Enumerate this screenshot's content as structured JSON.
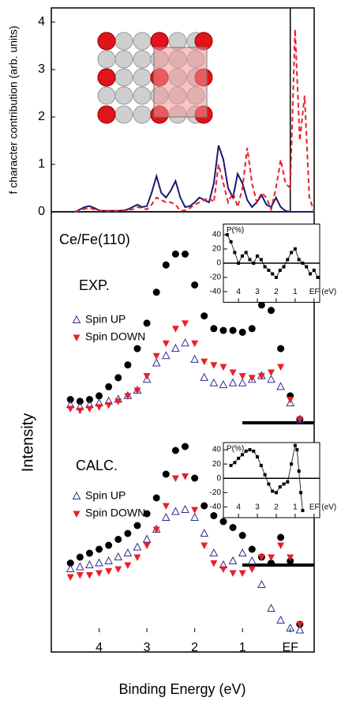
{
  "chart_data": [
    {
      "type": "line",
      "ylabel": "f character contribution (arb. units)",
      "xlim": [
        5,
        -0.5
      ],
      "ylim": [
        0,
        4.3
      ],
      "yticks": [
        0,
        1,
        2,
        3,
        4
      ],
      "vline": 0,
      "x": [
        4.5,
        4.4,
        4.3,
        4.2,
        4.1,
        4.0,
        3.9,
        3.8,
        3.7,
        3.6,
        3.5,
        3.4,
        3.3,
        3.2,
        3.1,
        3.0,
        2.9,
        2.8,
        2.7,
        2.6,
        2.5,
        2.4,
        2.3,
        2.2,
        2.1,
        2.0,
        1.9,
        1.8,
        1.7,
        1.6,
        1.5,
        1.4,
        1.3,
        1.2,
        1.1,
        1.0,
        0.9,
        0.8,
        0.7,
        0.6,
        0.5,
        0.4,
        0.3,
        0.2,
        0.1,
        0.0,
        -0.1,
        -0.2,
        -0.3,
        -0.4,
        -0.5
      ],
      "series": [
        {
          "color": "#1a1a6e",
          "dash": false,
          "values": [
            0,
            0.05,
            0.1,
            0.12,
            0.08,
            0.03,
            0.02,
            0.02,
            0.02,
            0.02,
            0.03,
            0.05,
            0.1,
            0.15,
            0.1,
            0.12,
            0.4,
            0.75,
            0.4,
            0.3,
            0.45,
            0.65,
            0.3,
            0.1,
            0.12,
            0.2,
            0.3,
            0.25,
            0.2,
            0.6,
            1.4,
            1.1,
            0.5,
            0.3,
            0.8,
            0.6,
            0.25,
            0.1,
            0.2,
            0.35,
            0.15,
            0.1,
            0.3,
            0.1,
            0.02,
            0,
            0,
            0,
            0,
            0,
            0
          ]
        },
        {
          "color": "#e8202a",
          "dash": true,
          "values": [
            0,
            0.03,
            0.06,
            0.08,
            0.05,
            0.02,
            0.02,
            0.02,
            0.02,
            0.02,
            0.03,
            0.04,
            0.05,
            0.1,
            0.08,
            0.05,
            0.15,
            0.3,
            0.25,
            0.2,
            0.2,
            0.15,
            0.02,
            0.03,
            0.08,
            0.15,
            0.2,
            0.25,
            0.3,
            0.2,
            1.0,
            0.6,
            0.2,
            0.4,
            0.1,
            0.5,
            1.35,
            0.6,
            0.2,
            0.4,
            0.3,
            0.05,
            0.5,
            1.1,
            0.6,
            0.5,
            3.85,
            1.5,
            2.45,
            0.3,
            0
          ]
        }
      ]
    },
    {
      "type": "scatter",
      "annotations": [
        "Ce/Fe(110)",
        "EXP."
      ],
      "xlim": [
        5,
        -0.5
      ],
      "ylim": [
        0,
        1
      ],
      "x": [
        4.6,
        4.4,
        4.2,
        4.0,
        3.8,
        3.6,
        3.4,
        3.2,
        3.0,
        2.8,
        2.6,
        2.4,
        2.2,
        2.0,
        1.8,
        1.6,
        1.4,
        1.2,
        1.0,
        0.8,
        0.6,
        0.4,
        0.2,
        0.0,
        -0.2
      ],
      "series": [
        {
          "color": "#000000",
          "marker": "circle",
          "values": [
            0.15,
            0.14,
            0.15,
            0.17,
            0.22,
            0.27,
            0.34,
            0.43,
            0.57,
            0.74,
            0.89,
            0.95,
            0.95,
            0.78,
            0.61,
            0.54,
            0.53,
            0.53,
            0.52,
            0.54,
            0.67,
            0.64,
            0.43,
            0.17,
            0.04
          ]
        },
        {
          "name": "Spin UP",
          "color": "#2e2e8f",
          "marker": "triangle-up",
          "values": [
            0.12,
            0.11,
            0.12,
            0.13,
            0.14,
            0.15,
            0.17,
            0.2,
            0.26,
            0.35,
            0.39,
            0.43,
            0.46,
            0.37,
            0.27,
            0.24,
            0.23,
            0.24,
            0.24,
            0.26,
            0.28,
            0.26,
            0.22,
            0.13,
            0.04
          ]
        },
        {
          "name": "Spin DOWN",
          "color": "#e8202a",
          "marker": "triangle-down",
          "values": [
            0.1,
            0.09,
            0.1,
            0.11,
            0.12,
            0.14,
            0.17,
            0.2,
            0.28,
            0.39,
            0.46,
            0.54,
            0.57,
            0.46,
            0.36,
            0.34,
            0.33,
            0.3,
            0.28,
            0.27,
            0.28,
            0.3,
            0.33,
            0.15,
            0.04
          ]
        }
      ]
    },
    {
      "type": "scatter",
      "annotations": [
        "CALC."
      ],
      "xlabel": "Binding Energy (eV)",
      "ylabel": "Intensity",
      "xlim": [
        5,
        -0.5
      ],
      "ylim": [
        0,
        1
      ],
      "xticks": [
        4,
        3,
        2,
        1,
        {
          "value": 0,
          "label": "EF"
        }
      ],
      "x": [
        4.6,
        4.4,
        4.2,
        4.0,
        3.8,
        3.6,
        3.4,
        3.2,
        3.0,
        2.8,
        2.6,
        2.4,
        2.2,
        2.0,
        1.8,
        1.6,
        1.4,
        1.2,
        1.0,
        0.8,
        0.6,
        0.4,
        0.2,
        0.0,
        -0.2
      ],
      "series": [
        {
          "color": "#000000",
          "marker": "circle",
          "values": [
            0.35,
            0.38,
            0.4,
            0.42,
            0.44,
            0.47,
            0.5,
            0.54,
            0.6,
            0.68,
            0.8,
            0.92,
            0.94,
            0.78,
            0.64,
            0.59,
            0.56,
            0.53,
            0.49,
            0.42,
            0.38,
            0.35,
            0.48,
            0.36,
            0.04
          ]
        },
        {
          "name": "Spin UP",
          "color": "#2e2e8f",
          "marker": "triangle-up",
          "values": [
            0.32,
            0.33,
            0.34,
            0.35,
            0.36,
            0.38,
            0.4,
            0.43,
            0.47,
            0.52,
            0.58,
            0.61,
            0.62,
            0.58,
            0.5,
            0.4,
            0.34,
            0.36,
            0.4,
            0.36,
            0.24,
            0.12,
            0.06,
            0.02,
            0.01
          ]
        },
        {
          "name": "Spin DOWN",
          "color": "#e8202a",
          "marker": "triangle-down",
          "values": [
            0.28,
            0.29,
            0.29,
            0.3,
            0.31,
            0.32,
            0.34,
            0.38,
            0.44,
            0.52,
            0.64,
            0.78,
            0.79,
            0.62,
            0.44,
            0.35,
            0.32,
            0.3,
            0.3,
            0.32,
            0.38,
            0.38,
            0.44,
            0.38,
            0.04
          ]
        }
      ]
    },
    {
      "type": "scatter",
      "ylabel": "P(%)",
      "xlim": [
        4.8,
        -0.3
      ],
      "ylim": [
        -55,
        55
      ],
      "xticks": [
        4,
        3,
        2,
        1,
        {
          "value": 0,
          "label": "EF (eV)"
        }
      ],
      "yticks": [
        40,
        20,
        0,
        -20,
        -40
      ],
      "hline": 0,
      "x": [
        4.6,
        4.4,
        4.2,
        4.0,
        3.8,
        3.6,
        3.4,
        3.2,
        3.0,
        2.8,
        2.6,
        2.4,
        2.2,
        2.0,
        1.8,
        1.6,
        1.4,
        1.2,
        1.0,
        0.8,
        0.6,
        0.4,
        0.2,
        0.0,
        -0.2
      ],
      "series": [
        {
          "color": "#000000",
          "marker": "square",
          "connect": true,
          "values": [
            40,
            30,
            15,
            0,
            10,
            15,
            5,
            0,
            10,
            5,
            -5,
            -10,
            -15,
            -20,
            -10,
            -5,
            5,
            15,
            20,
            5,
            0,
            -5,
            -15,
            -10,
            -20
          ]
        }
      ]
    },
    {
      "type": "scatter",
      "ylabel": "P(%)",
      "xlim": [
        4.8,
        -0.3
      ],
      "ylim": [
        -55,
        50
      ],
      "xticks": [
        4,
        3,
        2,
        1,
        {
          "value": 0,
          "label": "EF (eV)"
        }
      ],
      "yticks": [
        40,
        20,
        0,
        -20,
        -40
      ],
      "hline": 0,
      "x": [
        4.4,
        4.2,
        4.0,
        3.8,
        3.6,
        3.4,
        3.2,
        3.0,
        2.8,
        2.6,
        2.4,
        2.2,
        2.0,
        1.8,
        1.6,
        1.4,
        1.2,
        1.0,
        0.9,
        0.8,
        0.7,
        0.6
      ],
      "series": [
        {
          "color": "#000000",
          "marker": "square",
          "connect": true,
          "values": [
            18,
            22,
            28,
            33,
            38,
            40,
            38,
            30,
            18,
            5,
            -8,
            -18,
            -20,
            -12,
            -8,
            -5,
            20,
            46,
            40,
            10,
            -20,
            -45
          ]
        }
      ]
    }
  ]
}
